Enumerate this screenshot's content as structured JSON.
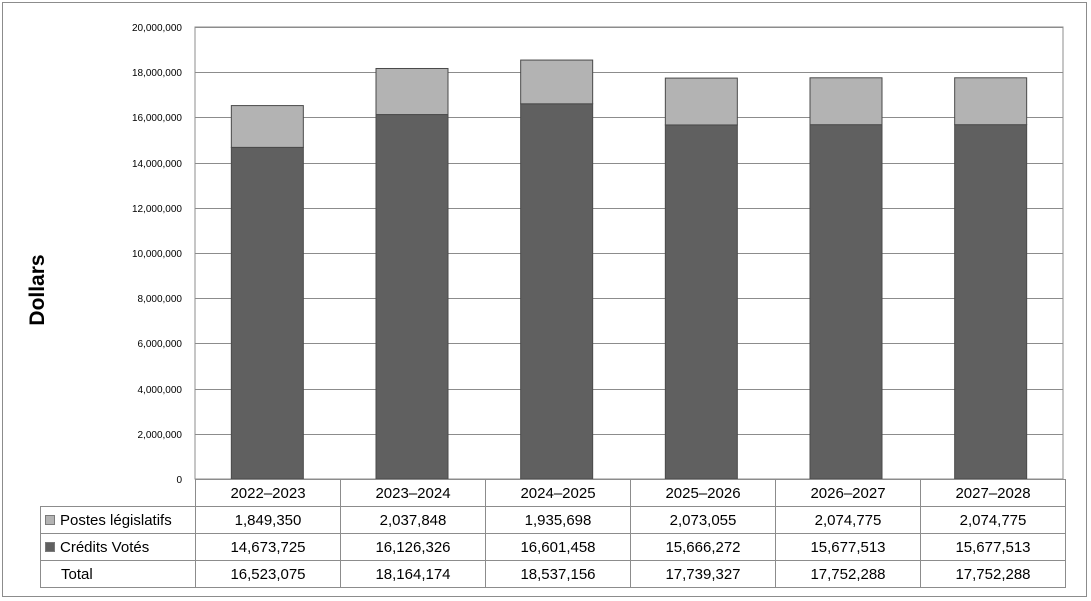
{
  "chart_data": {
    "type": "bar",
    "stacked": true,
    "ylabel": "Dollars",
    "xlabel": "",
    "ylim": [
      0,
      20000000
    ],
    "yticks": [
      "0",
      "2,000,000",
      "4,000,000",
      "6,000,000",
      "8,000,000",
      "10,000,000",
      "12,000,000",
      "14,000,000",
      "16,000,000",
      "18,000,000",
      "20,000,000"
    ],
    "grid": true,
    "categories": [
      "2022–2023",
      "2023–2024",
      "2024–2025",
      "2025–2026",
      "2026–2027",
      "2027–2028"
    ],
    "series": [
      {
        "name": "Crédits Votés",
        "color": "#606060",
        "values": [
          14673725,
          16126326,
          16601458,
          15666272,
          15677513,
          15677513
        ],
        "labels": [
          "14,673,725",
          "16,126,326",
          "16,601,458",
          "15,666,272",
          "15,677,513",
          "15,677,513"
        ]
      },
      {
        "name": "Postes législatifs",
        "color": "#b3b3b3",
        "values": [
          1849350,
          2037848,
          1935698,
          2073055,
          2074775,
          2074775
        ],
        "labels": [
          "1,849,350",
          "2,037,848",
          "1,935,698",
          "2,073,055",
          "2,074,775",
          "2,074,775"
        ]
      }
    ],
    "total": {
      "name": "Total",
      "values": [
        16523075,
        18164174,
        18537156,
        17739327,
        17752288,
        17752288
      ],
      "labels": [
        "16,523,075",
        "18,164,174",
        "18,537,156",
        "17,739,327",
        "17,752,288",
        "17,752,288"
      ]
    },
    "legend": "data-table"
  }
}
